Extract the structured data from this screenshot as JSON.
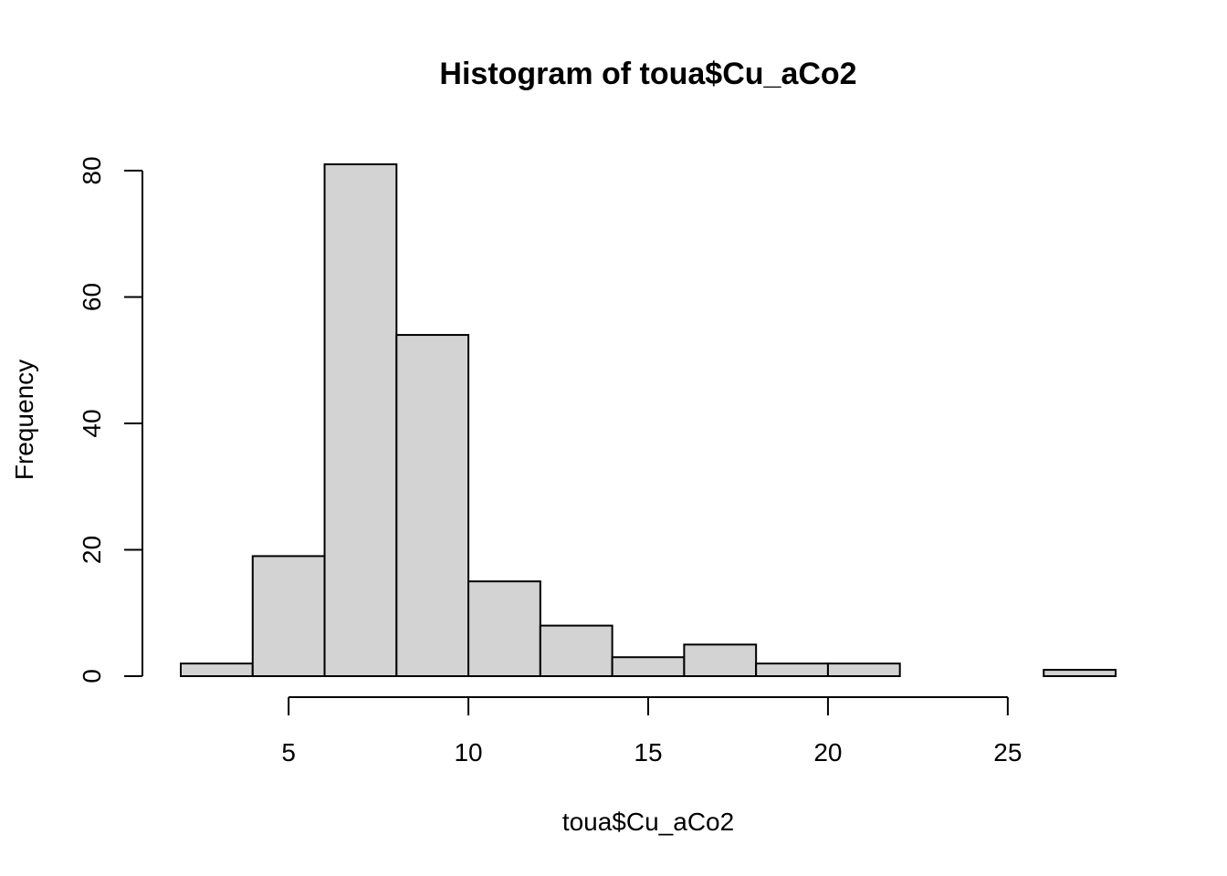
{
  "chart_data": {
    "type": "bar",
    "title": "Histogram of toua$Cu_aCo2",
    "xlabel": "toua$Cu_aCo2",
    "ylabel": "Frequency",
    "bins": [
      {
        "start": 2,
        "end": 4,
        "count": 2
      },
      {
        "start": 4,
        "end": 6,
        "count": 19
      },
      {
        "start": 6,
        "end": 8,
        "count": 81
      },
      {
        "start": 8,
        "end": 10,
        "count": 54
      },
      {
        "start": 10,
        "end": 12,
        "count": 15
      },
      {
        "start": 12,
        "end": 14,
        "count": 8
      },
      {
        "start": 14,
        "end": 16,
        "count": 3
      },
      {
        "start": 16,
        "end": 18,
        "count": 5
      },
      {
        "start": 18,
        "end": 20,
        "count": 2
      },
      {
        "start": 20,
        "end": 22,
        "count": 2
      },
      {
        "start": 22,
        "end": 24,
        "count": 0
      },
      {
        "start": 24,
        "end": 26,
        "count": 0
      },
      {
        "start": 26,
        "end": 28,
        "count": 1
      }
    ],
    "x_ticks": [
      5,
      10,
      15,
      20,
      25
    ],
    "y_ticks": [
      0,
      20,
      40,
      60,
      80
    ],
    "xlim": [
      2,
      28
    ],
    "ylim": [
      0,
      80
    ],
    "bar_fill": "#d3d3d3",
    "bar_stroke": "#000000",
    "grid": false
  }
}
